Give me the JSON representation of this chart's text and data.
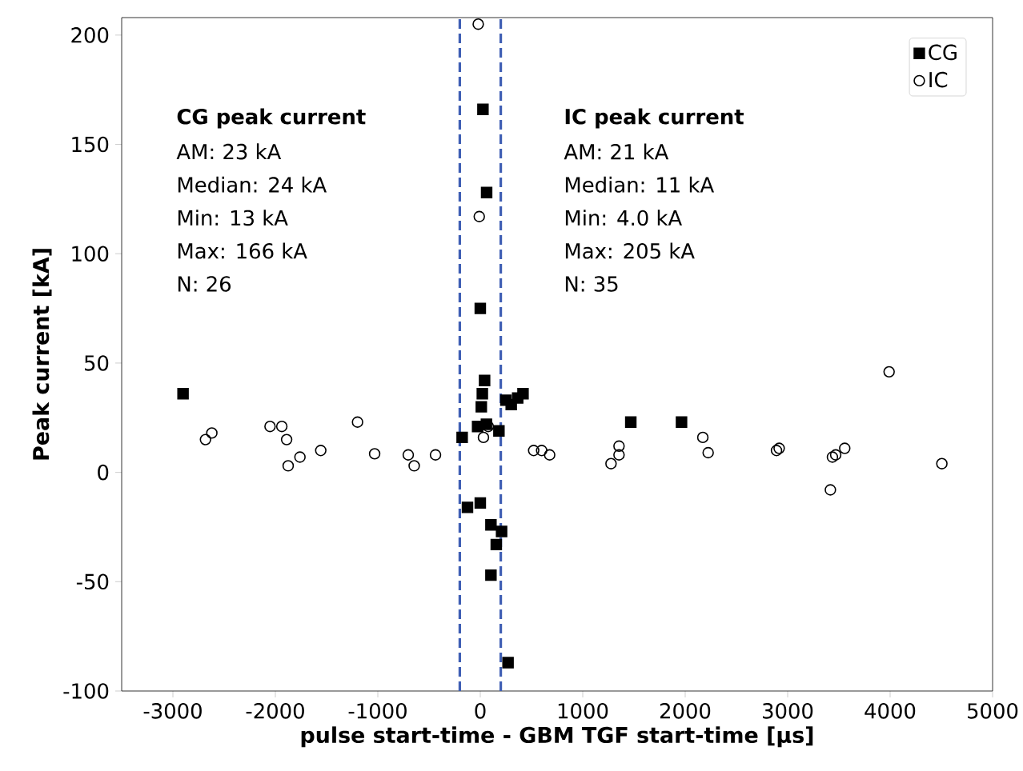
{
  "chart_data": {
    "type": "scatter",
    "xlabel": "pulse start-time - GBM TGF start-time [μs]",
    "ylabel": "Peak current [kA]",
    "xlim": [
      -3500,
      5000
    ],
    "ylim": [
      -100,
      208
    ],
    "xticks": [
      -3000,
      -2000,
      -1000,
      0,
      1000,
      2000,
      3000,
      4000,
      5000
    ],
    "yticks": [
      -100,
      -50,
      0,
      50,
      100,
      150,
      200
    ],
    "grid": false,
    "legend": "top right",
    "series": [
      {
        "name": "CG",
        "color": "#000000",
        "marker": "square",
        "x": [
          26,
          62,
          0,
          42,
          20,
          10,
          417,
          365,
          302,
          94,
          -26,
          182,
          -177,
          -125,
          0,
          104,
          208,
          156,
          104,
          271,
          -2901,
          1469,
          1964,
          60,
          250
        ],
        "values": [
          166,
          128,
          75,
          42,
          36,
          30,
          36,
          34,
          31,
          null,
          21,
          19,
          16,
          -16,
          -14,
          -24,
          -27,
          -33,
          -47,
          -87,
          36,
          23,
          23,
          22,
          33
        ]
      },
      {
        "name": "IC",
        "color": "#000000",
        "marker": "circle",
        "x": [
          -20,
          -10,
          78,
          31,
          -1031,
          -703,
          -645,
          -437,
          521,
          599,
          677,
          -2682,
          -2620,
          -2052,
          -1937,
          -1890,
          -1875,
          -1760,
          -1557,
          -1198,
          1276,
          1354,
          1354,
          2172,
          2224,
          2891,
          2917,
          3417,
          3437,
          3469,
          3557,
          3990,
          4505
        ],
        "values": [
          205,
          117,
          21,
          16,
          8.5,
          8,
          3,
          8,
          10,
          10,
          8,
          15,
          18,
          21,
          21,
          15,
          3,
          7,
          10,
          23,
          4,
          8,
          12,
          16,
          9,
          10,
          11,
          -8,
          7,
          8,
          11,
          46,
          4
        ]
      }
    ],
    "ref_lines": [
      {
        "axis": "x",
        "value": -200,
        "color": "#3f5fb4",
        "line_style": "dashed"
      },
      {
        "axis": "x",
        "value": 200,
        "color": "#3f5fb4",
        "line_style": "dashed"
      }
    ],
    "annotations": [
      "CG peak current",
      "AM: 23 kA",
      "Median: 24 kA",
      "Min: 13 kA",
      "Max: 166 kA",
      "N: 26",
      "IC peak current",
      "AM: 21 kA",
      "Median: 11 kA",
      "Min: 4.0 kA",
      "Max: 205 kA",
      "N: 35"
    ]
  }
}
